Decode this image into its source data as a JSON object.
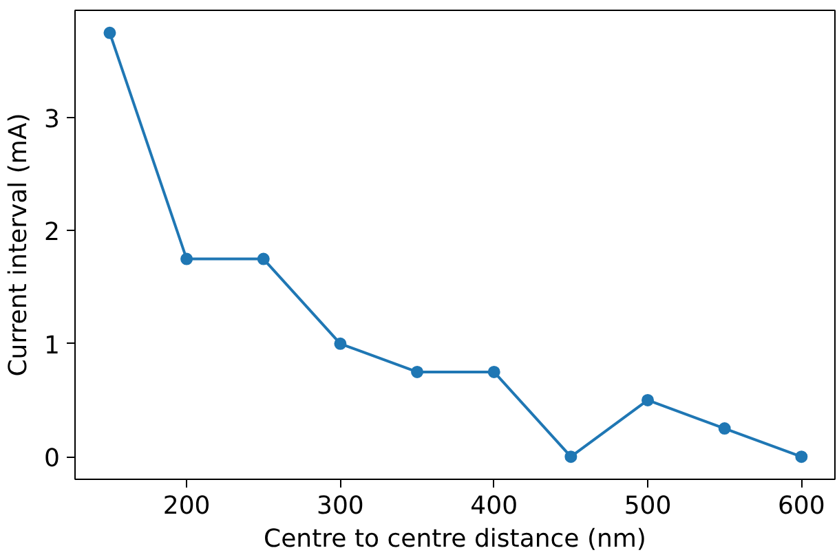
{
  "chart_data": {
    "type": "line",
    "xlabel": "Centre to centre distance (nm)",
    "ylabel": "Current interval (mA)",
    "x": [
      150,
      200,
      250,
      300,
      350,
      400,
      450,
      500,
      550,
      600
    ],
    "series": [
      {
        "color": "#1f77b4",
        "values": [
          3.75,
          1.75,
          1.75,
          1.0,
          0.75,
          0.75,
          0,
          0.5,
          0.25,
          0
        ]
      }
    ],
    "xlim": [
      127.4,
      621.8
    ],
    "ylim": [
      -0.2,
      3.95
    ],
    "xticks": [
      200,
      300,
      400,
      500,
      600
    ],
    "yticks": [
      0,
      1,
      2,
      3
    ],
    "marker": "circle",
    "line_style": "solid",
    "grid": false
  }
}
